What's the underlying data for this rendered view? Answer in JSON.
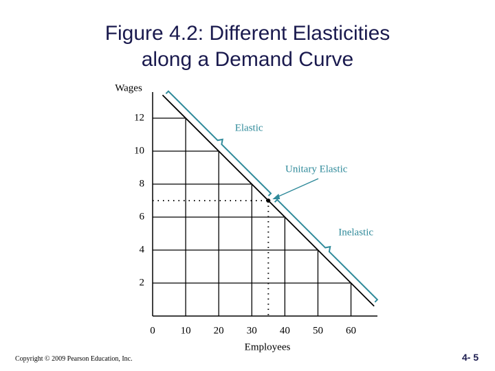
{
  "chart_data": {
    "type": "line",
    "title": "Figure 4.2: Different Elasticities along a Demand Curve",
    "x_label": "Employees",
    "y_label": "Wages",
    "x": [
      3,
      67
    ],
    "values": [
      13.4,
      0.6
    ],
    "color": "#000000",
    "xlim": [
      0,
      68
    ],
    "ylim": [
      0,
      14
    ],
    "xticks": [
      0,
      10,
      20,
      30,
      40,
      50,
      60
    ],
    "yticks": [
      2,
      4,
      6,
      8,
      10,
      12
    ],
    "grid": true,
    "unitary_point": {
      "x": 35,
      "y": 7
    },
    "annotations": [
      {
        "text": "Elastic"
      },
      {
        "text": "Unitary Elastic"
      },
      {
        "text": "Inelastic"
      }
    ],
    "annotation_color": "#2f8a9a"
  },
  "footer": {
    "copyright": "Copyright © 2009 Pearson Education, Inc.",
    "page": "4- 5"
  }
}
